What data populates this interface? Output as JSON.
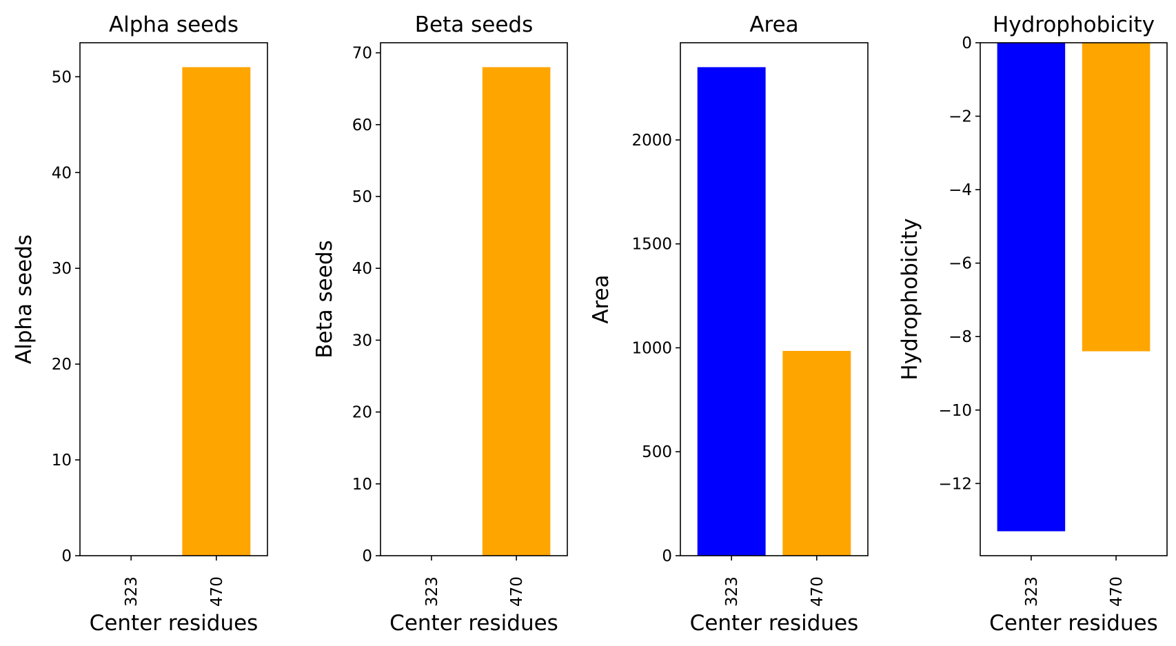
{
  "colors": {
    "blue": "#0000ff",
    "orange": "#ffa500",
    "axes": "#000000",
    "background": "#ffffff"
  },
  "chart_data": [
    {
      "type": "bar",
      "title": "Alpha seeds",
      "xlabel": "Center residues",
      "ylabel": "Alpha seeds",
      "categories": [
        "323",
        "470"
      ],
      "values": [
        0,
        51
      ],
      "bar_colors": [
        "#0000ff",
        "#ffa500"
      ],
      "ylim": [
        0,
        53.55
      ],
      "yticks": [
        0,
        10,
        20,
        30,
        40,
        50
      ],
      "ytick_labels": [
        "0",
        "10",
        "20",
        "30",
        "40",
        "50"
      ],
      "grid": false
    },
    {
      "type": "bar",
      "title": "Beta seeds",
      "xlabel": "Center residues",
      "ylabel": "Beta seeds",
      "categories": [
        "323",
        "470"
      ],
      "values": [
        0,
        68
      ],
      "bar_colors": [
        "#0000ff",
        "#ffa500"
      ],
      "ylim": [
        0,
        71.4
      ],
      "yticks": [
        0,
        10,
        20,
        30,
        40,
        50,
        60,
        70
      ],
      "ytick_labels": [
        "0",
        "10",
        "20",
        "30",
        "40",
        "50",
        "60",
        "70"
      ],
      "grid": false
    },
    {
      "type": "bar",
      "title": "Area",
      "xlabel": "Center residues",
      "ylabel": "Area",
      "categories": [
        "323",
        "470"
      ],
      "values": [
        2350,
        985
      ],
      "bar_colors": [
        "#0000ff",
        "#ffa500"
      ],
      "ylim": [
        0,
        2467.5
      ],
      "yticks": [
        0,
        500,
        1000,
        1500,
        2000
      ],
      "ytick_labels": [
        "0",
        "500",
        "1000",
        "1500",
        "2000"
      ],
      "grid": false
    },
    {
      "type": "bar",
      "title": "Hydrophobicity",
      "xlabel": "Center residues",
      "ylabel": "Hydrophobicity",
      "categories": [
        "323",
        "470"
      ],
      "values": [
        -13.3,
        -8.4
      ],
      "bar_colors": [
        "#0000ff",
        "#ffa500"
      ],
      "ylim": [
        -13.965,
        0
      ],
      "yticks": [
        0,
        -2,
        -4,
        -6,
        -8,
        -10,
        -12
      ],
      "ytick_labels": [
        "0",
        "−2",
        "−4",
        "−6",
        "−8",
        "−10",
        "−12"
      ],
      "grid": false
    }
  ]
}
